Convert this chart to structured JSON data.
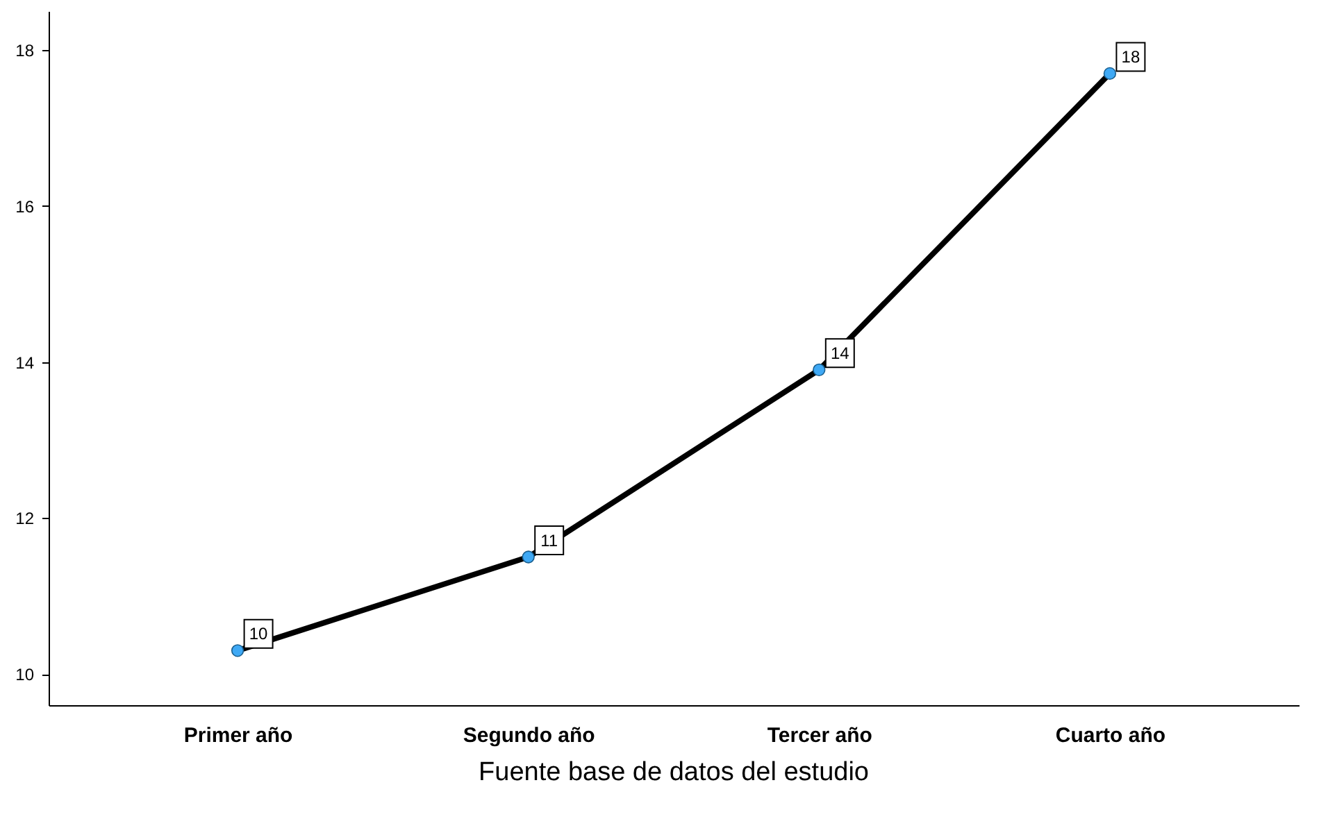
{
  "chart_data": {
    "type": "line",
    "categories": [
      "Primer año",
      "Segundo año",
      "Tercer año",
      "Cuarto año"
    ],
    "series": [
      {
        "color": "#000000",
        "values": [
          10.3,
          11.5,
          13.9,
          17.7
        ],
        "value_labels": [
          "10",
          "11",
          "14",
          "18"
        ]
      }
    ],
    "ylim": [
      9.6,
      18.5
    ],
    "yticks": [
      10,
      12,
      14,
      16,
      18
    ],
    "grid": false,
    "marker": "circle",
    "line_style": "solid",
    "annotations": [
      "Fuente base de datos del estudio"
    ]
  }
}
